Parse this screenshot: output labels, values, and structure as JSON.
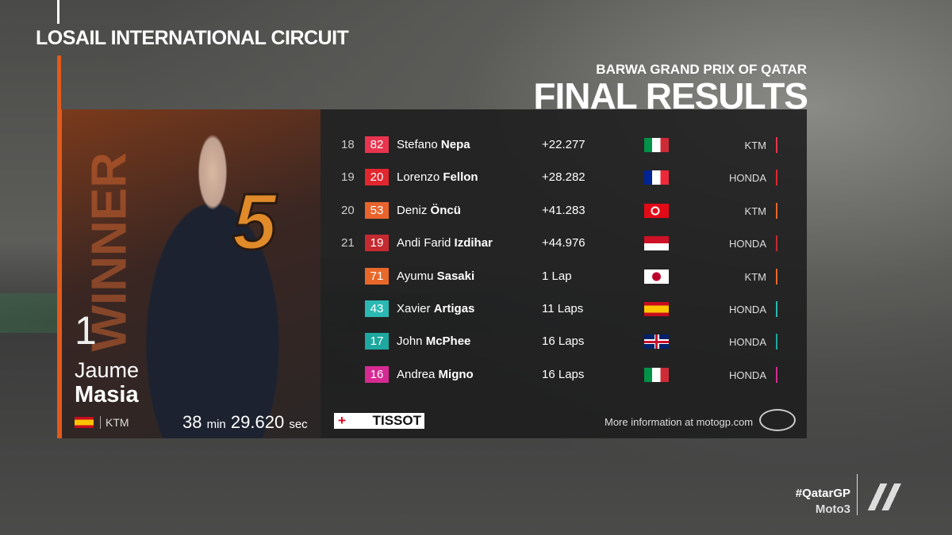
{
  "header": {
    "venue": "LOSAIL INTERNATIONAL CIRCUIT",
    "event": "BARWA GRAND PRIX OF QATAR",
    "title": "FINAL RESULTS"
  },
  "winner": {
    "label": "WINNER",
    "position": "1",
    "number": "5",
    "first_name": "Jaume",
    "last_name": "Masia",
    "team": "KTM",
    "time_minutes": "38",
    "minutes_unit": "min",
    "time_seconds": "29.620",
    "seconds_unit": "sec"
  },
  "results": [
    {
      "position": "18",
      "number": "82",
      "color": "#e8344e",
      "first_name": "Stefano",
      "last_name": "Nepa",
      "gap": "+22.277",
      "team": "KTM"
    },
    {
      "position": "19",
      "number": "20",
      "color": "#e2262e",
      "first_name": "Lorenzo",
      "last_name": "Fellon",
      "gap": "+28.282",
      "team": "HONDA"
    },
    {
      "position": "20",
      "number": "53",
      "color": "#e8642c",
      "first_name": "Deniz",
      "last_name": "Öncü",
      "gap": "+41.283",
      "team": "KTM"
    },
    {
      "position": "21",
      "number": "19",
      "color": "#c42a30",
      "first_name": "Andi Farid",
      "last_name": "Izdihar",
      "gap": "+44.976",
      "team": "HONDA"
    },
    {
      "number": "71",
      "color": "#e8682a",
      "first_name": "Ayumu",
      "last_name": "Sasaki",
      "gap": "1 Lap",
      "team": "KTM"
    },
    {
      "number": "43",
      "color": "#2bb8b2",
      "first_name": "Xavier",
      "last_name": "Artigas",
      "gap": "11 Laps",
      "team": "HONDA"
    },
    {
      "number": "17",
      "color": "#1ea8a0",
      "first_name": "John",
      "last_name": "McPhee",
      "gap": "16 Laps",
      "team": "HONDA"
    },
    {
      "number": "16",
      "color": "#d62a92",
      "first_name": "Andrea",
      "last_name": "Migno",
      "gap": "16 Laps",
      "team": "HONDA"
    }
  ],
  "footer": {
    "sponsor": "TISSOT",
    "info": "More information at motogp.com",
    "hashtag": "#QatarGP",
    "class": "Moto3"
  }
}
